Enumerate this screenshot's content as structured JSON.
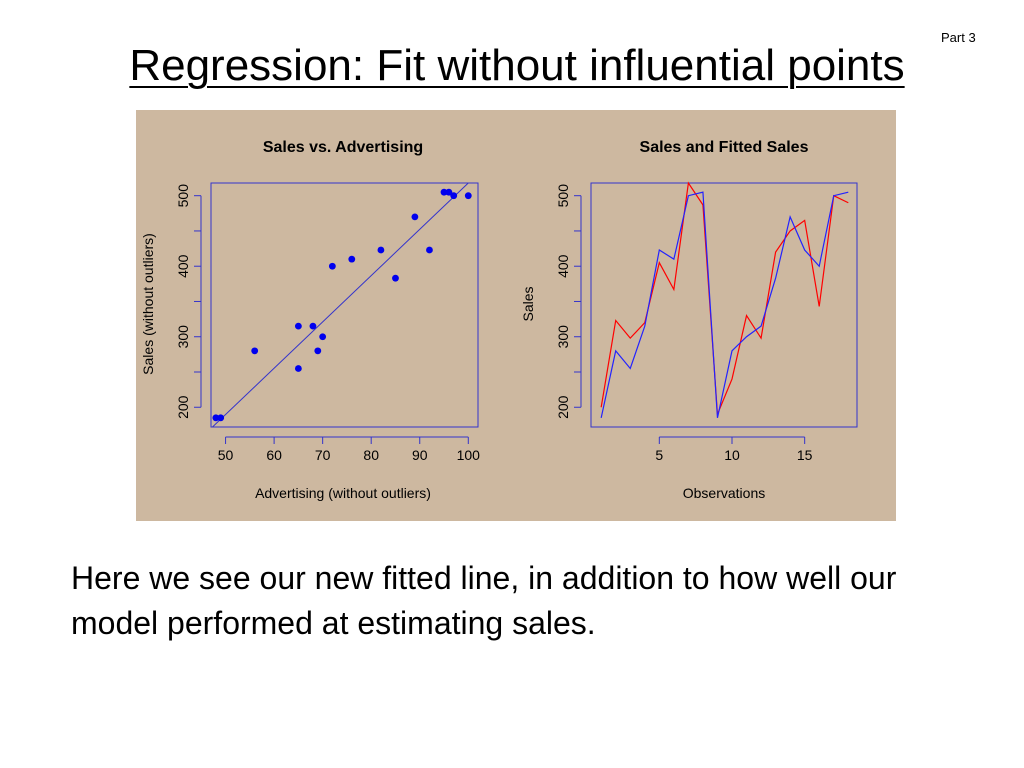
{
  "slide": {
    "part_label": "Part 3",
    "title": "Regression: Fit without influential points",
    "body_text": "Here we see our new fitted line, in addition to how well our model performed at estimating sales."
  },
  "colors": {
    "background": "#cdb8a0",
    "points": "#0000ee",
    "axes": "#3333cc",
    "fitted": "#ff0000",
    "observed": "#2222ff"
  },
  "chart_data": [
    {
      "type": "scatter",
      "title": "Sales vs. Advertising",
      "xlabel": "Advertising (without outliers)",
      "ylabel": "Sales (without outliers)",
      "xlim": [
        47,
        102
      ],
      "ylim": [
        172,
        518
      ],
      "xticks": [
        50,
        60,
        70,
        80,
        90,
        100
      ],
      "yticks": [
        200,
        300,
        400,
        500
      ],
      "grid": false,
      "points": [
        [
          48,
          185
        ],
        [
          49,
          185
        ],
        [
          56,
          280
        ],
        [
          65,
          255
        ],
        [
          65,
          315
        ],
        [
          68,
          315
        ],
        [
          69,
          280
        ],
        [
          70,
          300
        ],
        [
          72,
          400
        ],
        [
          76,
          410
        ],
        [
          82,
          423
        ],
        [
          85,
          383
        ],
        [
          89,
          470
        ],
        [
          92,
          423
        ],
        [
          95,
          505
        ],
        [
          96,
          505
        ],
        [
          97,
          500
        ],
        [
          100,
          500
        ]
      ],
      "regression_line": {
        "x": [
          47,
          100
        ],
        "y": [
          170,
          518
        ]
      }
    },
    {
      "type": "line",
      "title": "Sales and Fitted Sales",
      "xlabel": "Observations",
      "ylabel": "Sales",
      "xlim": [
        0.3,
        18.6
      ],
      "ylim": [
        172,
        518
      ],
      "xticks": [
        5,
        10,
        15
      ],
      "yticks": [
        200,
        300,
        400,
        500
      ],
      "grid": false,
      "x": [
        1,
        2,
        3,
        4,
        5,
        6,
        7,
        8,
        9,
        10,
        11,
        12,
        13,
        14,
        15,
        16,
        17,
        18
      ],
      "series": [
        {
          "color": "#2222ff",
          "values": [
            185,
            280,
            255,
            315,
            423,
            410,
            500,
            505,
            185,
            280,
            300,
            315,
            383,
            470,
            423,
            400,
            500,
            505
          ]
        },
        {
          "color": "#ff0000",
          "values": [
            200,
            323,
            298,
            320,
            405,
            367,
            518,
            487,
            190,
            240,
            330,
            298,
            420,
            450,
            465,
            343,
            500,
            490
          ]
        }
      ]
    }
  ]
}
